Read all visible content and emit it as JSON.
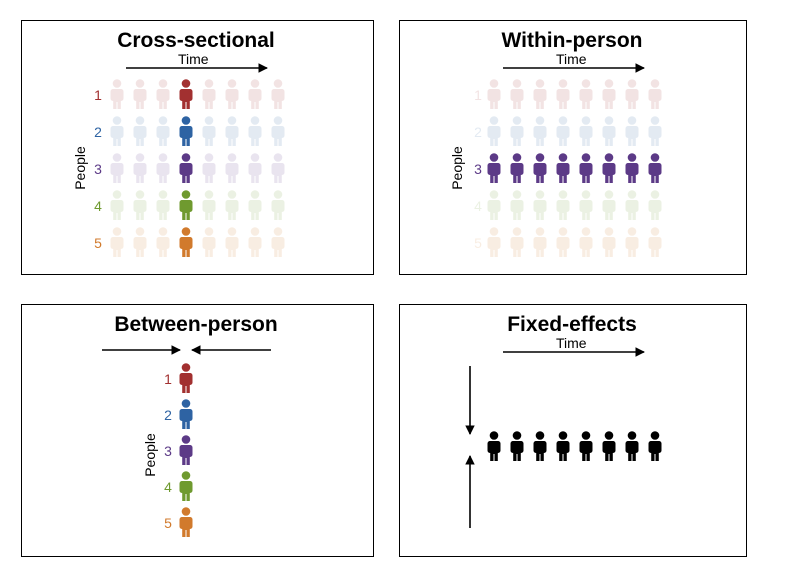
{
  "colors": {
    "person1": "#a23030",
    "person2": "#2e63a3",
    "person3": "#5c3a87",
    "person4": "#6f9a2f",
    "person5": "#d17a2c",
    "black": "#000000",
    "faded_opacity": 0.13
  },
  "row_labels": [
    "1",
    "2",
    "3",
    "4",
    "5"
  ],
  "panels": {
    "cross_sectional": {
      "title": "Cross-sectional",
      "x_axis_label": "Time",
      "y_axis_label": "People"
    },
    "within_person": {
      "title": "Within-person",
      "x_axis_label": "Time",
      "y_axis_label": "People",
      "highlighted_row": "3"
    },
    "between_person": {
      "title": "Between-person",
      "y_axis_label": "People"
    },
    "fixed_effects": {
      "title": "Fixed-effects",
      "x_axis_label": "Time"
    }
  },
  "icon": "person-icon"
}
